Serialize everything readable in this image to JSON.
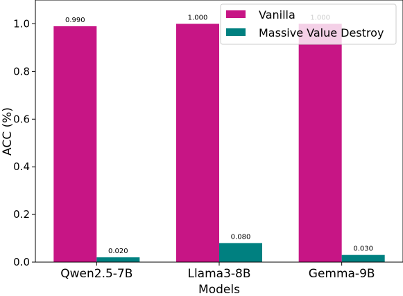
{
  "chart_data": {
    "type": "bar",
    "categories": [
      "Qwen2.5-7B",
      "Llama3-8B",
      "Gemma-9B"
    ],
    "series": [
      {
        "name": "Vanilla",
        "values": [
          0.99,
          1.0,
          1.0
        ],
        "labels": [
          "0.990",
          "1.000",
          "1.000"
        ],
        "color": "#c71585"
      },
      {
        "name": "Massive Value Destroy",
        "values": [
          0.02,
          0.08,
          0.03
        ],
        "labels": [
          "0.020",
          "0.080",
          "0.030"
        ],
        "color": "#008080"
      }
    ],
    "xlabel": "Models",
    "ylabel": "ACC (%)",
    "ylim": [
      0,
      1.1
    ],
    "yticks": [
      "0.0",
      "0.2",
      "0.4",
      "0.6",
      "0.8",
      "1.0"
    ],
    "grid": false,
    "legend_position": "top-right"
  }
}
